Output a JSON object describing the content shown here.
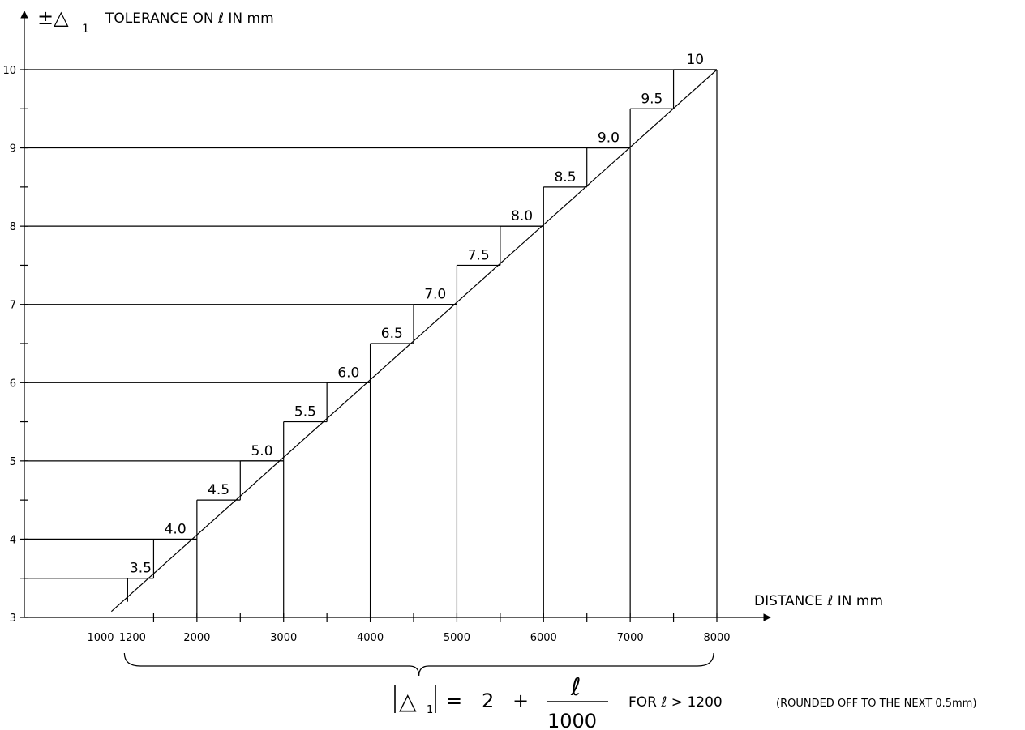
{
  "chart_data": {
    "type": "line",
    "y_axis": {
      "label_symbol": "±△",
      "label_subscript": "1",
      "label_text": "TOLERANCE ON ℓ IN mm",
      "range": [
        3,
        10
      ],
      "ticks": [
        3,
        4,
        5,
        6,
        7,
        8,
        9,
        10
      ],
      "tick_labels": [
        "3",
        "4",
        "5",
        "6",
        "7",
        "8",
        "9",
        "10"
      ]
    },
    "x_axis": {
      "label": "DISTANCE ℓ IN mm",
      "range": [
        1000,
        8000
      ],
      "ticks": [
        1000,
        1200,
        2000,
        3000,
        4000,
        5000,
        6000,
        7000,
        8000
      ],
      "tick_labels": [
        "1000",
        "1200",
        "2000",
        "3000",
        "4000",
        "5000",
        "6000",
        "7000",
        "8000"
      ]
    },
    "series": [
      {
        "x": [
          1200,
          8000
        ],
        "y": [
          3.2,
          10
        ]
      }
    ],
    "steps": [
      {
        "value": 3.5,
        "label": "3.5",
        "x_start": 1200,
        "x_end": 1500
      },
      {
        "value": 4.0,
        "label": "4.0",
        "x_start": 1500,
        "x_end": 2000
      },
      {
        "value": 4.5,
        "label": "4.5",
        "x_start": 2000,
        "x_end": 2500
      },
      {
        "value": 5.0,
        "label": "5.0",
        "x_start": 2500,
        "x_end": 3000
      },
      {
        "value": 5.5,
        "label": "5.5",
        "x_start": 3000,
        "x_end": 3500
      },
      {
        "value": 6.0,
        "label": "6.0",
        "x_start": 3500,
        "x_end": 4000
      },
      {
        "value": 6.5,
        "label": "6.5",
        "x_start": 4000,
        "x_end": 4500
      },
      {
        "value": 7.0,
        "label": "7.0",
        "x_start": 4500,
        "x_end": 5000
      },
      {
        "value": 7.5,
        "label": "7.5",
        "x_start": 5000,
        "x_end": 5500
      },
      {
        "value": 8.0,
        "label": "8.0",
        "x_start": 5500,
        "x_end": 6000
      },
      {
        "value": 8.5,
        "label": "8.5",
        "x_start": 6000,
        "x_end": 6500
      },
      {
        "value": 9.0,
        "label": "9.0",
        "x_start": 6500,
        "x_end": 7000
      },
      {
        "value": 9.5,
        "label": "9.5",
        "x_start": 7000,
        "x_end": 7500
      },
      {
        "value": 10,
        "label": "10",
        "x_start": 7500,
        "x_end": 8000
      }
    ],
    "guide_lines": [
      {
        "y": 3.5,
        "x": 1200
      },
      {
        "y": 4,
        "x": 1500
      },
      {
        "y": 4,
        "x": 2000
      },
      {
        "y": 5,
        "x": 3000
      },
      {
        "y": 6,
        "x": 4000
      },
      {
        "y": 7,
        "x": 5000
      },
      {
        "y": 8,
        "x": 6000
      },
      {
        "y": 9,
        "x": 7000
      },
      {
        "y": 10,
        "x": 8000
      }
    ],
    "formula": {
      "lhs": "△",
      "lhs_subscript": "1",
      "equals": "=",
      "constant": "2",
      "plus": "+",
      "numerator": "ℓ",
      "denominator": "1000",
      "condition": "FOR ℓ > 1200",
      "note": "(ROUNDED OFF TO THE NEXT 0.5mm)"
    },
    "grid": false,
    "legend": "none"
  }
}
